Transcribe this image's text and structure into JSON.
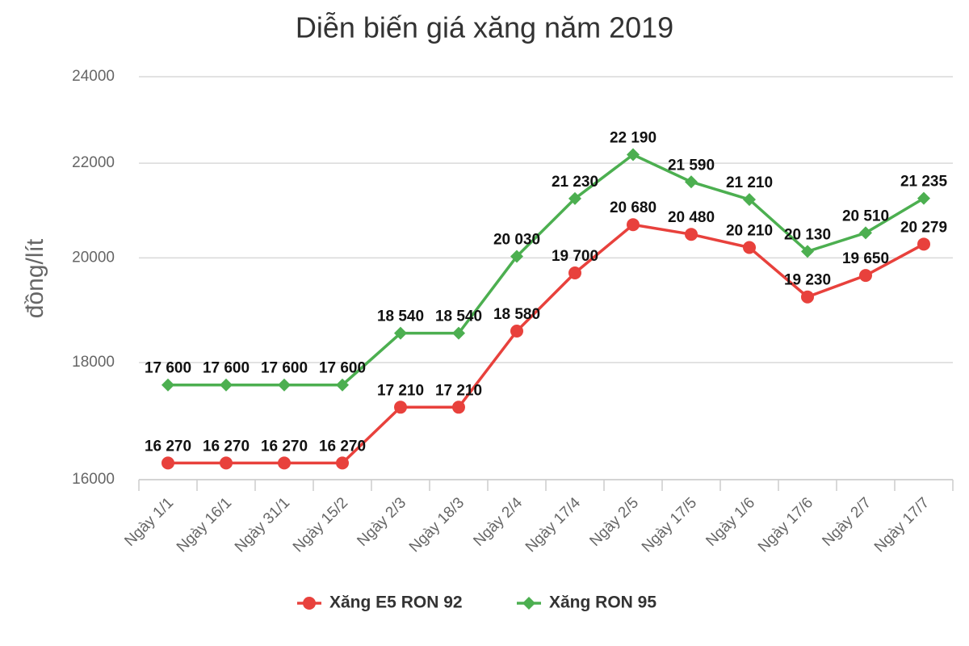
{
  "chart_data": {
    "type": "line",
    "title": "Diễn biến giá xăng năm 2019",
    "y_label": "đồng/lít",
    "categories": [
      "Ngày 1/1",
      "Ngày 16/1",
      "Ngày 31/1",
      "Ngày 15/2",
      "Ngày 2/3",
      "Ngày 18/3",
      "Ngày 2/4",
      "Ngày 17/4",
      "Ngày 2/5",
      "Ngày 17/5",
      "Ngày 1/6",
      "Ngày 17/6",
      "Ngày 2/7",
      "Ngày 17/7"
    ],
    "series": [
      {
        "name": "Xăng E5 RON 92",
        "color": "#e8413c",
        "marker": "circle",
        "values": [
          16270,
          16270,
          16270,
          16270,
          17210,
          17210,
          18580,
          19700,
          20680,
          20480,
          20210,
          19230,
          19650,
          20279
        ],
        "value_labels": [
          "16 270",
          "16 270",
          "16 270",
          "16 270",
          "17 210",
          "17 210",
          "18 580",
          "19 700",
          "20 680",
          "20 480",
          "20 210",
          "19 230",
          "19 650",
          "20 279"
        ]
      },
      {
        "name": "Xăng RON 95",
        "color": "#4caf50",
        "marker": "diamond",
        "values": [
          17600,
          17600,
          17600,
          17600,
          18540,
          18540,
          20030,
          21230,
          22190,
          21590,
          21210,
          20130,
          20510,
          21235
        ],
        "value_labels": [
          "17 600",
          "17 600",
          "17 600",
          "17 600",
          "18 540",
          "18 540",
          "20 030",
          "21 230",
          "22 190",
          "21 590",
          "21 210",
          "20 130",
          "20 510",
          "21 235"
        ]
      }
    ],
    "ylim": [
      16000,
      24000
    ],
    "yticks": [
      16000,
      18000,
      20000,
      22000,
      24000
    ],
    "log": true,
    "grid": true,
    "legend": "bottom"
  }
}
